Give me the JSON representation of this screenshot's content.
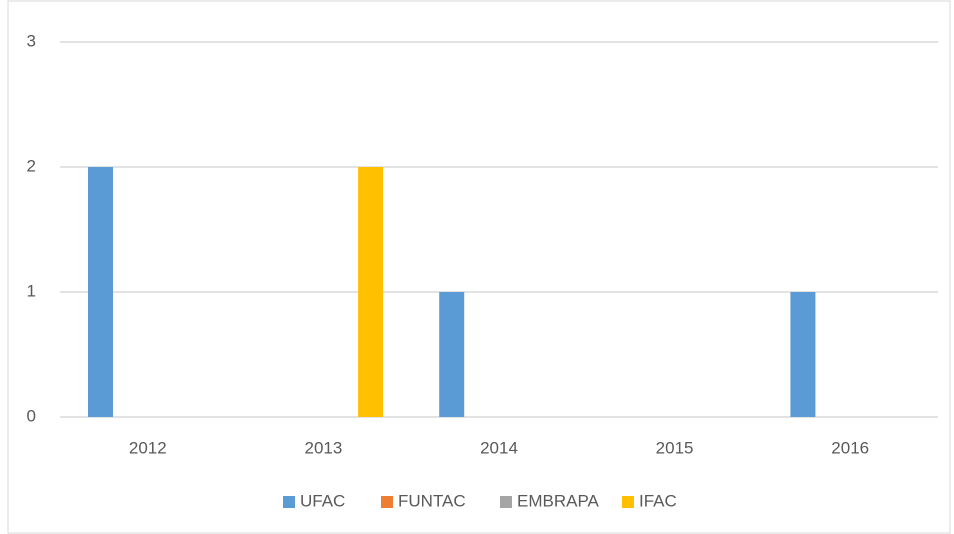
{
  "chart_data": {
    "type": "bar",
    "categories": [
      "2012",
      "2013",
      "2014",
      "2015",
      "2016"
    ],
    "series": [
      {
        "name": "UFAC",
        "color": "#5b9bd5",
        "values": [
          2,
          0,
          1,
          0,
          1
        ]
      },
      {
        "name": "FUNTAC",
        "color": "#ed7d31",
        "values": [
          0,
          0,
          0,
          0,
          0
        ]
      },
      {
        "name": "EMBRAPA",
        "color": "#a5a5a5",
        "values": [
          0,
          0,
          0,
          0,
          0
        ]
      },
      {
        "name": "IFAC",
        "color": "#ffc000",
        "values": [
          0,
          2,
          0,
          0,
          0
        ]
      }
    ],
    "ylim": [
      0,
      3
    ],
    "yticks": [
      0,
      1,
      2,
      3
    ],
    "grid": true,
    "legend": "bottom"
  }
}
